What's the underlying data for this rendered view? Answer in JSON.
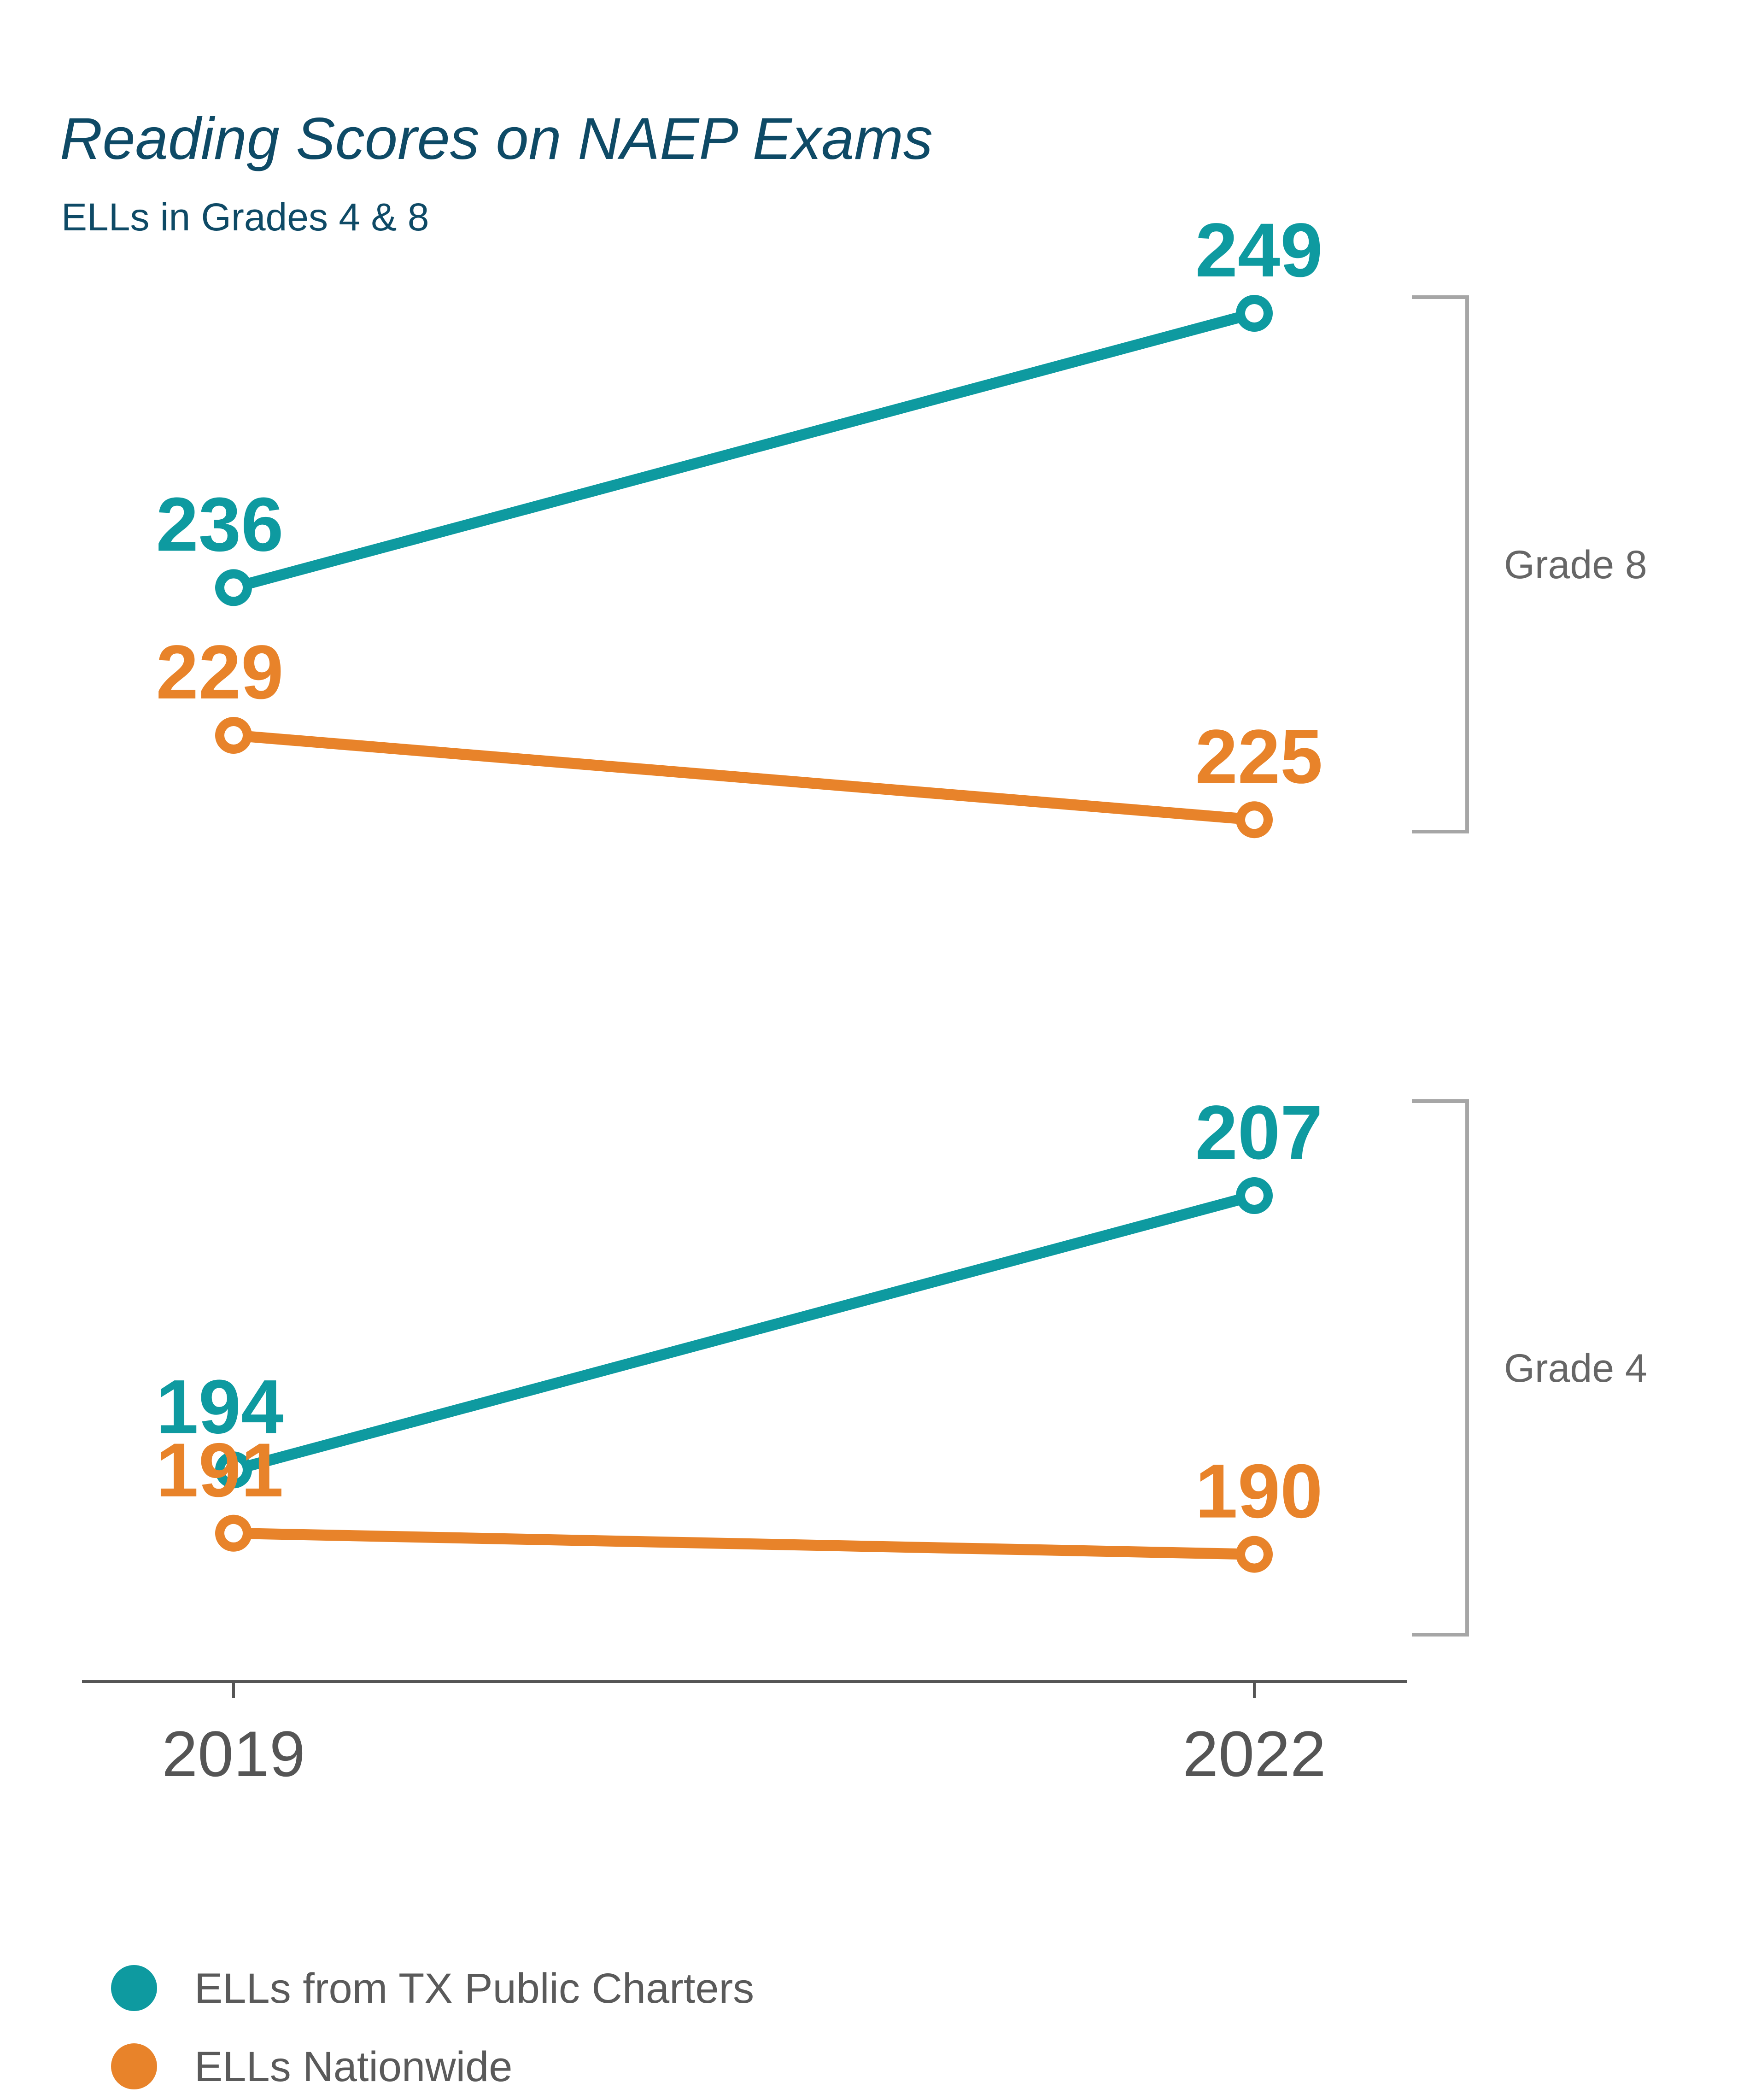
{
  "chart_data": {
    "type": "line",
    "title": "Reading Scores on NAEP Exams",
    "subtitle": "ELLs in Grades 4 & 8",
    "x": [
      "2019",
      "2022"
    ],
    "groups": [
      {
        "label": "Grade 8",
        "series": [
          {
            "name": "ELLs from TX Public Charters",
            "values": [
              236,
              249
            ]
          },
          {
            "name": "ELLs Nationwide",
            "values": [
              229,
              225
            ]
          }
        ]
      },
      {
        "label": "Grade 4",
        "series": [
          {
            "name": "ELLs from TX Public Charters",
            "values": [
              194,
              207
            ]
          },
          {
            "name": "ELLs Nationwide",
            "values": [
              191,
              190
            ]
          }
        ]
      }
    ],
    "legend": [
      {
        "name": "ELLs from TX Public Charters",
        "color": "#0e9aa0"
      },
      {
        "name": "ELLs Nationwide",
        "color": "#e8832a"
      }
    ],
    "colors": {
      "tx": "#0e9aa0",
      "national": "#e8832a",
      "axis": "#555555",
      "bracket": "#a6a6a6"
    },
    "grid": false,
    "legend_position": "bottom-left"
  }
}
